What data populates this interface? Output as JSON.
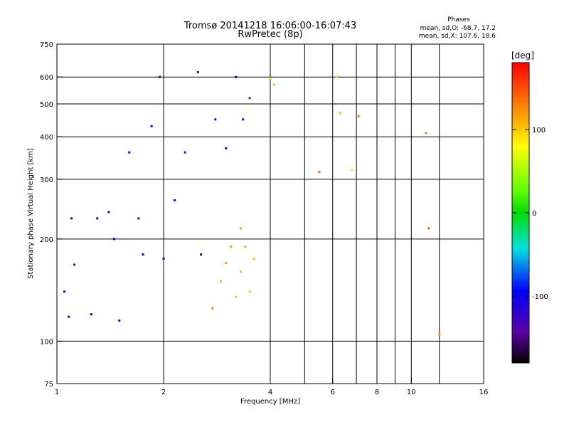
{
  "chart_data": {
    "type": "scatter",
    "title": "Tromsø 20141218 16:06:00-16:07:43",
    "subtitle": "RwPretec (8p)",
    "xlabel": "Frequency [MHz]",
    "ylabel": "Stationary phase Virtual Height [km]",
    "x_scale": "log",
    "y_scale": "log",
    "xlim": [
      1,
      16
    ],
    "ylim": [
      75,
      750
    ],
    "x_ticks": [
      1,
      2,
      4,
      6,
      8,
      10,
      16
    ],
    "x_tick_labels": [
      "1",
      "2",
      "4",
      "6",
      "8",
      "10",
      "16"
    ],
    "y_ticks": [
      75,
      100,
      200,
      300,
      400,
      500,
      600,
      750
    ],
    "y_tick_labels": [
      "75",
      "100",
      "200",
      "300",
      "400",
      "500",
      "600",
      "750"
    ],
    "grid": true,
    "stats": {
      "title": "Phases",
      "line_o": "mean, sd,O: -68.7, 17.2",
      "line_x": "mean, sd,X: 107.6, 18.6"
    },
    "colorbar": {
      "label": "[deg]",
      "range": [
        -180,
        180
      ],
      "ticks": [
        100,
        0,
        -100
      ],
      "tick_labels": [
        "100",
        "0",
        "-100"
      ],
      "colormap": "rainbow"
    },
    "series": [
      {
        "points": [
          [
            1.05,
            140,
            -90
          ],
          [
            1.08,
            118,
            -100
          ],
          [
            1.1,
            230,
            -90
          ],
          [
            1.12,
            168,
            -85
          ],
          [
            1.3,
            230,
            -95
          ],
          [
            1.4,
            240,
            -100
          ],
          [
            1.5,
            115,
            -110
          ],
          [
            1.6,
            360,
            -100
          ],
          [
            1.7,
            230,
            -90
          ],
          [
            1.75,
            180,
            -100
          ],
          [
            1.85,
            430,
            -110
          ],
          [
            1.95,
            600,
            -115
          ],
          [
            2.0,
            175,
            -100
          ],
          [
            2.15,
            260,
            -95
          ],
          [
            2.3,
            360,
            -90
          ],
          [
            2.5,
            620,
            -120
          ],
          [
            2.55,
            180,
            -95
          ],
          [
            2.8,
            450,
            -105
          ],
          [
            3.0,
            370,
            -110
          ],
          [
            3.2,
            600,
            -100
          ],
          [
            3.35,
            450,
            -90
          ],
          [
            3.5,
            520,
            -85
          ],
          [
            1.25,
            120,
            -100
          ],
          [
            1.45,
            200,
            -95
          ]
        ]
      },
      {
        "points": [
          [
            2.75,
            125,
            130
          ],
          [
            2.9,
            150,
            110
          ],
          [
            3.0,
            170,
            120
          ],
          [
            3.1,
            190,
            115
          ],
          [
            3.2,
            135,
            100
          ],
          [
            3.3,
            160,
            105
          ],
          [
            3.4,
            190,
            110
          ],
          [
            3.5,
            140,
            95
          ],
          [
            3.6,
            175,
            100
          ],
          [
            3.3,
            215,
            115
          ],
          [
            4.0,
            595,
            100
          ],
          [
            4.1,
            570,
            110
          ],
          [
            5.5,
            315,
            140
          ],
          [
            6.15,
            600,
            95
          ],
          [
            6.3,
            470,
            105
          ],
          [
            6.8,
            320,
            85
          ],
          [
            7.1,
            460,
            135
          ],
          [
            11.0,
            410,
            125
          ],
          [
            12.0,
            105,
            120
          ],
          [
            11.2,
            215,
            140
          ]
        ]
      }
    ]
  }
}
